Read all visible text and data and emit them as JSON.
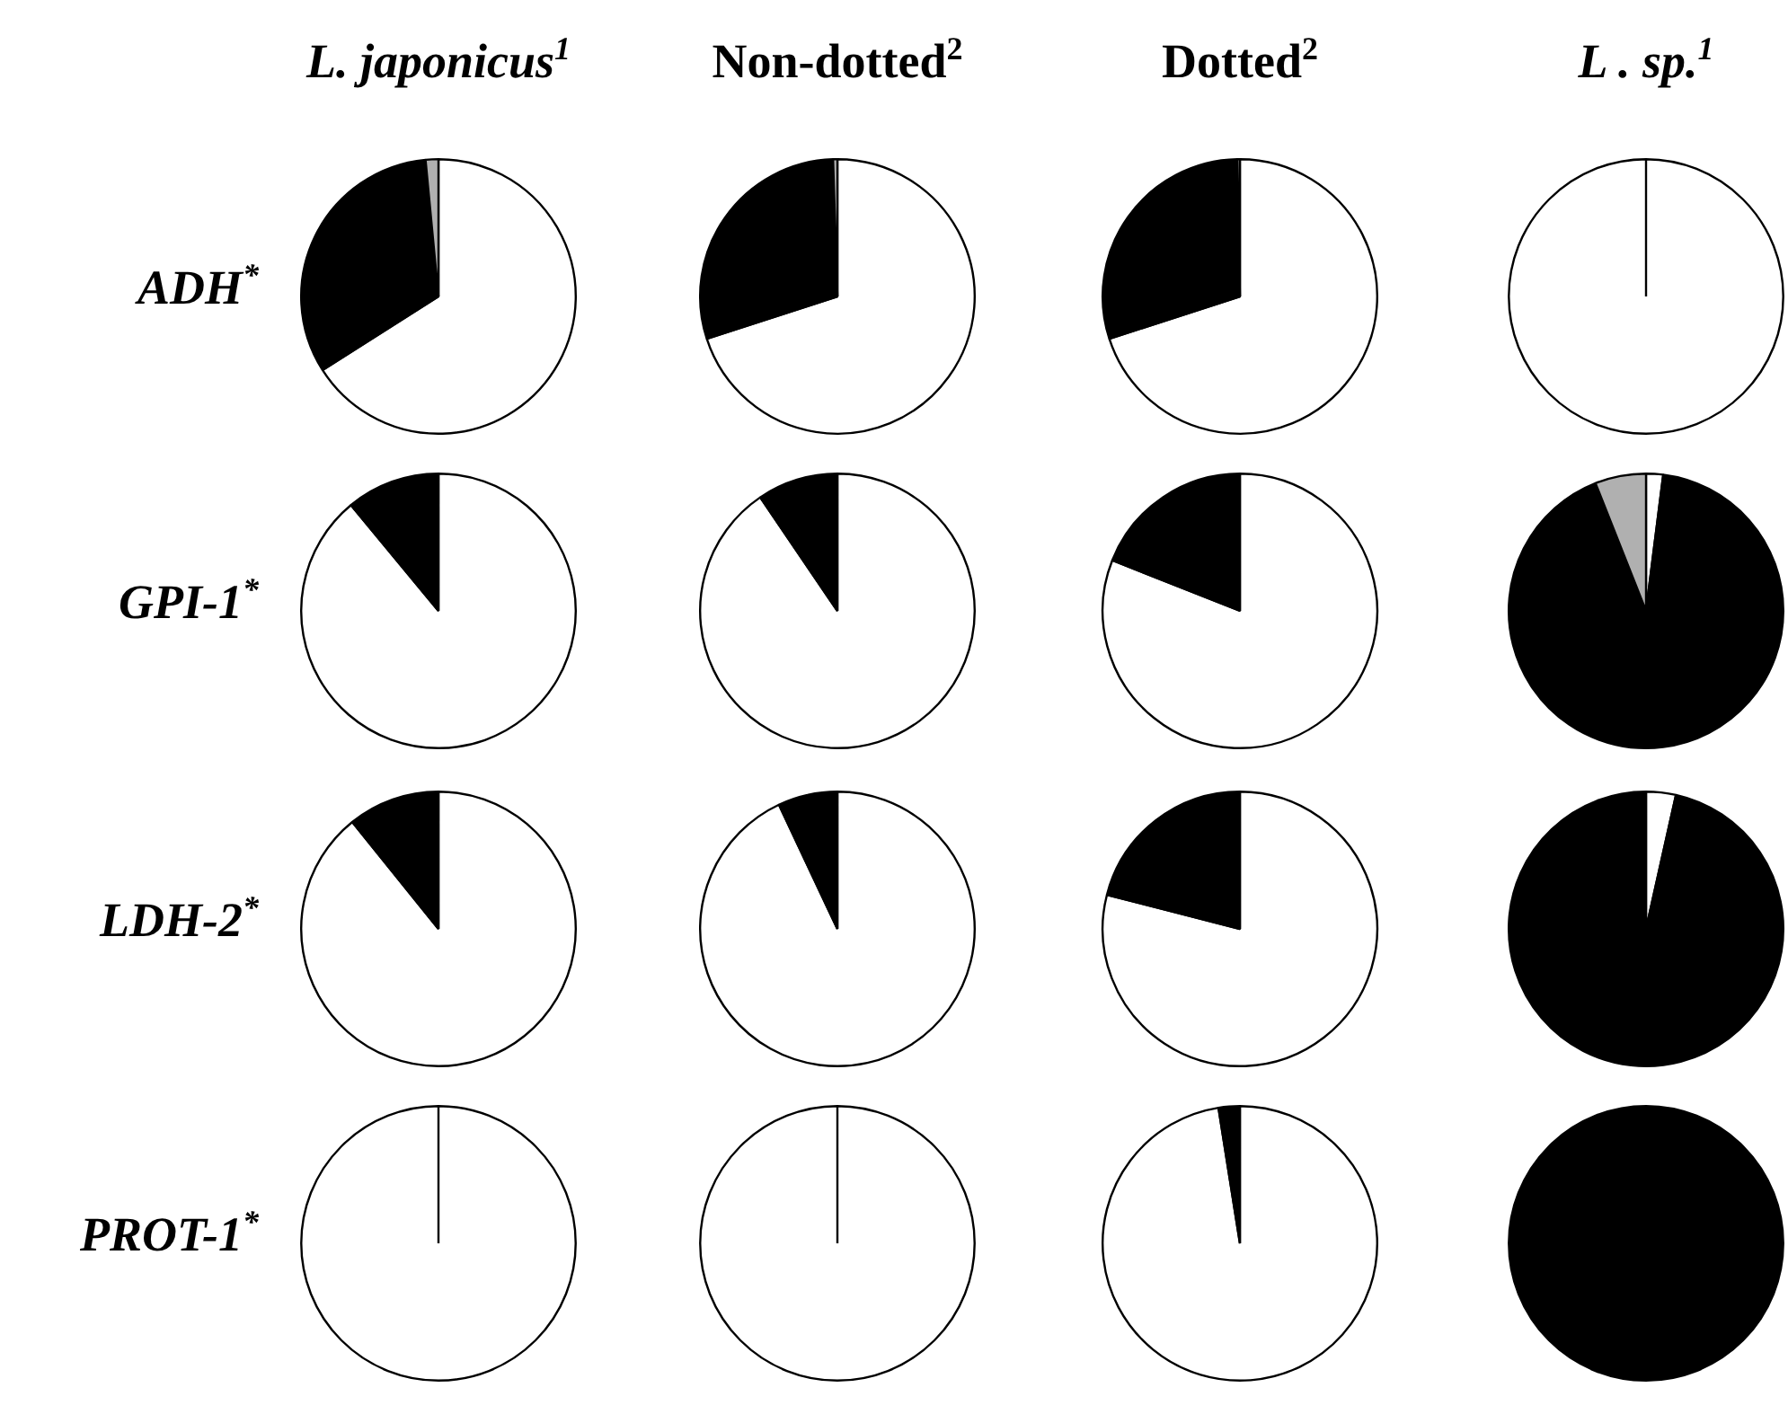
{
  "chart_data": [
    {
      "type": "pie",
      "title": "L. japonicus$^{1}$",
      "ylabel": "ADH$^{*}$",
      "categories": [
        null,
        null,
        null
      ],
      "values": [
        66,
        32.5,
        1.5
      ],
      "colors": [
        "#ffffff",
        "#000000",
        "#b0b0b0"
      ]
    },
    {
      "type": "pie",
      "title": "Non-dotted$^{2}$",
      "categories": [
        null,
        null,
        null
      ],
      "values": [
        70,
        29.5,
        0.5
      ],
      "colors": [
        "#ffffff",
        "#000000",
        "#b0b0b0"
      ]
    },
    {
      "type": "pie",
      "title": "Dotted$^{2}$",
      "categories": [
        null,
        null,
        null
      ],
      "values": [
        70,
        29.7,
        0.3
      ],
      "colors": [
        "#ffffff",
        "#000000",
        "#b0b0b0"
      ]
    },
    {
      "type": "pie",
      "title": "L . sp.$^{1}$",
      "categories": [
        null,
        null,
        null
      ],
      "values": [
        100,
        0,
        0
      ],
      "colors": [
        "#ffffff",
        "#000000",
        "#b0b0b0"
      ]
    },
    {
      "type": "pie",
      "ylabel": "GPI-1$^{*}$",
      "categories": [
        null,
        null,
        null
      ],
      "values": [
        89,
        11,
        0
      ],
      "colors": [
        "#ffffff",
        "#000000",
        "#b0b0b0"
      ]
    },
    {
      "type": "pie",
      "categories": [
        null,
        null,
        null
      ],
      "values": [
        90.5,
        9.5,
        0
      ],
      "colors": [
        "#ffffff",
        "#000000",
        "#b0b0b0"
      ]
    },
    {
      "type": "pie",
      "categories": [
        null,
        null,
        null
      ],
      "values": [
        81,
        19,
        0
      ],
      "colors": [
        "#ffffff",
        "#000000",
        "#b0b0b0"
      ]
    },
    {
      "type": "pie",
      "categories": [
        null,
        null,
        null
      ],
      "values": [
        2,
        92,
        6
      ],
      "colors": [
        "#ffffff",
        "#000000",
        "#b0b0b0"
      ]
    },
    {
      "type": "pie",
      "ylabel": "LDH-2$^{*}$",
      "categories": [
        null,
        null,
        null
      ],
      "values": [
        89.2,
        10.8,
        0
      ],
      "colors": [
        "#ffffff",
        "#000000",
        "#b0b0b0"
      ]
    },
    {
      "type": "pie",
      "categories": [
        null,
        null,
        null
      ],
      "values": [
        93,
        7,
        0
      ],
      "colors": [
        "#ffffff",
        "#000000",
        "#b0b0b0"
      ]
    },
    {
      "type": "pie",
      "categories": [
        null,
        null,
        null
      ],
      "values": [
        79,
        21,
        0
      ],
      "colors": [
        "#ffffff",
        "#000000",
        "#b0b0b0"
      ]
    },
    {
      "type": "pie",
      "categories": [
        null,
        null,
        null
      ],
      "values": [
        3.5,
        96.5,
        0
      ],
      "colors": [
        "#ffffff",
        "#000000",
        "#b0b0b0"
      ]
    },
    {
      "type": "pie",
      "ylabel": "PROT-1$^{*}$",
      "categories": [
        null,
        null,
        null
      ],
      "values": [
        100,
        0,
        0
      ],
      "colors": [
        "#ffffff",
        "#000000",
        "#b0b0b0"
      ]
    },
    {
      "type": "pie",
      "categories": [
        null,
        null,
        null
      ],
      "values": [
        100,
        0,
        0
      ],
      "colors": [
        "#ffffff",
        "#000000",
        "#b0b0b0"
      ]
    },
    {
      "type": "pie",
      "categories": [
        null,
        null,
        null
      ],
      "values": [
        97.5,
        2.5,
        0
      ],
      "colors": [
        "#ffffff",
        "#000000",
        "#b0b0b0"
      ]
    },
    {
      "type": "pie",
      "categories": [
        null,
        null,
        null
      ],
      "values": [
        0,
        100,
        0
      ],
      "colors": [
        "#ffffff",
        "#000000",
        "#b0b0b0"
      ]
    }
  ]
}
